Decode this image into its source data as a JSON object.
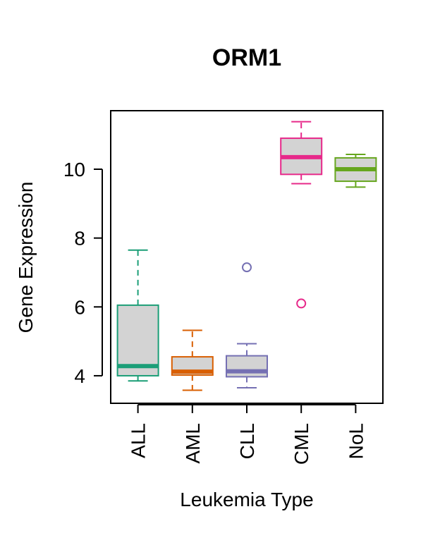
{
  "chart_data": {
    "type": "boxplot",
    "title": "ORM1",
    "xlabel": "Leukemia Type",
    "ylabel": "Gene Expression",
    "ylim": [
      3.2,
      11.7
    ],
    "yticks": [
      4,
      6,
      8,
      10
    ],
    "ytick_labels": [
      "4",
      "6",
      "8",
      "10"
    ],
    "grid": false,
    "legend": "none",
    "box_fill": "#d3d3d3",
    "categories": [
      "ALL",
      "AML",
      "CLL",
      "CML",
      "NoL"
    ],
    "boxes": [
      {
        "name": "ALL",
        "color": "#1b9e77",
        "whisker_low": 3.85,
        "q1": 4.0,
        "median": 4.28,
        "q3": 6.05,
        "whisker_high": 7.65,
        "outliers": []
      },
      {
        "name": "AML",
        "color": "#d95f02",
        "whisker_low": 3.58,
        "q1": 4.02,
        "median": 4.12,
        "q3": 4.55,
        "whisker_high": 5.32,
        "outliers": []
      },
      {
        "name": "CLL",
        "color": "#7570b3",
        "whisker_low": 3.65,
        "q1": 3.97,
        "median": 4.13,
        "q3": 4.58,
        "whisker_high": 4.93,
        "outliers": [
          7.15
        ]
      },
      {
        "name": "CML",
        "color": "#e7298a",
        "whisker_low": 9.58,
        "q1": 9.85,
        "median": 10.35,
        "q3": 10.9,
        "whisker_high": 11.38,
        "outliers": [
          6.1
        ]
      },
      {
        "name": "NoL",
        "color": "#66a61e",
        "whisker_low": 9.48,
        "q1": 9.65,
        "median": 10.0,
        "q3": 10.33,
        "whisker_high": 10.43,
        "outliers": []
      }
    ]
  }
}
